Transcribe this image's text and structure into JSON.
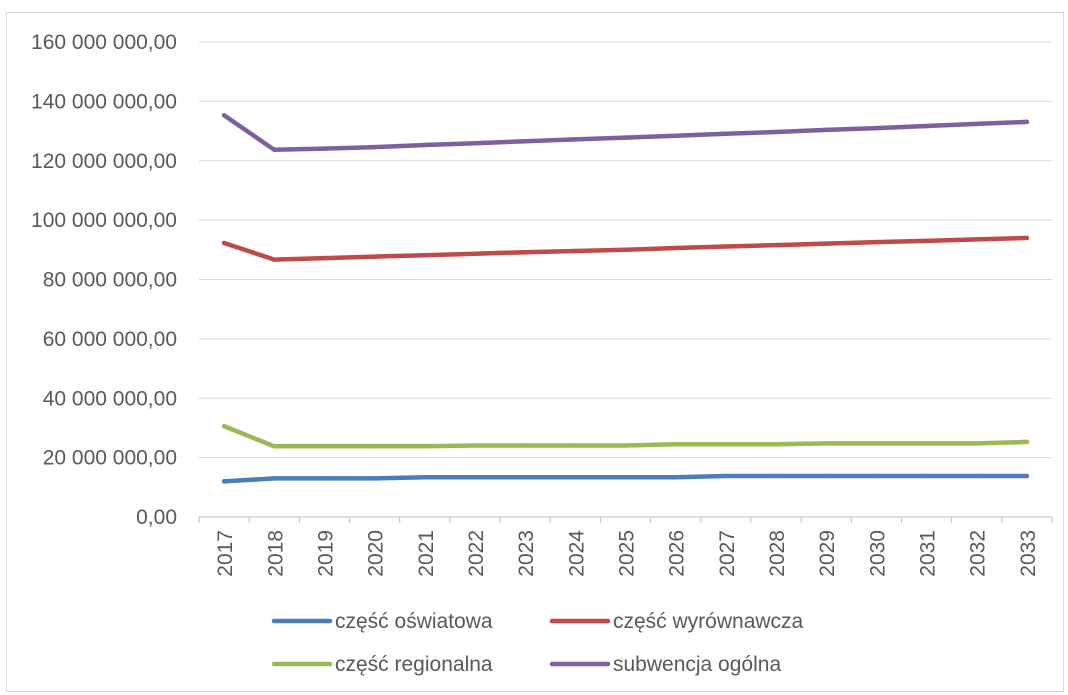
{
  "chart_data": {
    "type": "line",
    "title": "",
    "xlabel": "",
    "ylabel": "",
    "ylim": [
      0,
      160000000
    ],
    "y_ticks": [
      {
        "value": 0,
        "label": "0,00"
      },
      {
        "value": 20000000,
        "label": "20 000 000,00"
      },
      {
        "value": 40000000,
        "label": "40 000 000,00"
      },
      {
        "value": 60000000,
        "label": "60 000 000,00"
      },
      {
        "value": 80000000,
        "label": "80 000 000,00"
      },
      {
        "value": 100000000,
        "label": "100 000 000,00"
      },
      {
        "value": 120000000,
        "label": "120 000 000,00"
      },
      {
        "value": 140000000,
        "label": "140 000 000,00"
      },
      {
        "value": 160000000,
        "label": "160 000 000,00"
      }
    ],
    "categories": [
      "2017",
      "2018",
      "2019",
      "2020",
      "2021",
      "2022",
      "2023",
      "2024",
      "2025",
      "2026",
      "2027",
      "2028",
      "2029",
      "2030",
      "2031",
      "2032",
      "2033"
    ],
    "grid": true,
    "legend_position": "bottom",
    "series": [
      {
        "name": "część oświatowa",
        "color": "#4a7ebb",
        "values": [
          12000000,
          13000000,
          13000000,
          13000000,
          13400000,
          13400000,
          13400000,
          13400000,
          13400000,
          13400000,
          13800000,
          13800000,
          13800000,
          13800000,
          13800000,
          13800000,
          13800000
        ]
      },
      {
        "name": "część wyrównawcza",
        "color": "#be4b48",
        "values": [
          92300000,
          86700000,
          87200000,
          87700000,
          88200000,
          88700000,
          89200000,
          89600000,
          90000000,
          90600000,
          91100000,
          91600000,
          92100000,
          92600000,
          93000000,
          93500000,
          94000000
        ]
      },
      {
        "name": "część regionalna",
        "color": "#98b954",
        "values": [
          30600000,
          23800000,
          23800000,
          23800000,
          23800000,
          24100000,
          24100000,
          24100000,
          24100000,
          24500000,
          24500000,
          24500000,
          24800000,
          24800000,
          24800000,
          24800000,
          25300000
        ]
      },
      {
        "name": "subwencja ogólna",
        "color": "#7d60a0",
        "values": [
          135300000,
          123700000,
          124100000,
          124600000,
          125300000,
          125900000,
          126600000,
          127200000,
          127800000,
          128400000,
          129100000,
          129700000,
          130400000,
          131000000,
          131700000,
          132400000,
          133100000
        ]
      }
    ]
  }
}
